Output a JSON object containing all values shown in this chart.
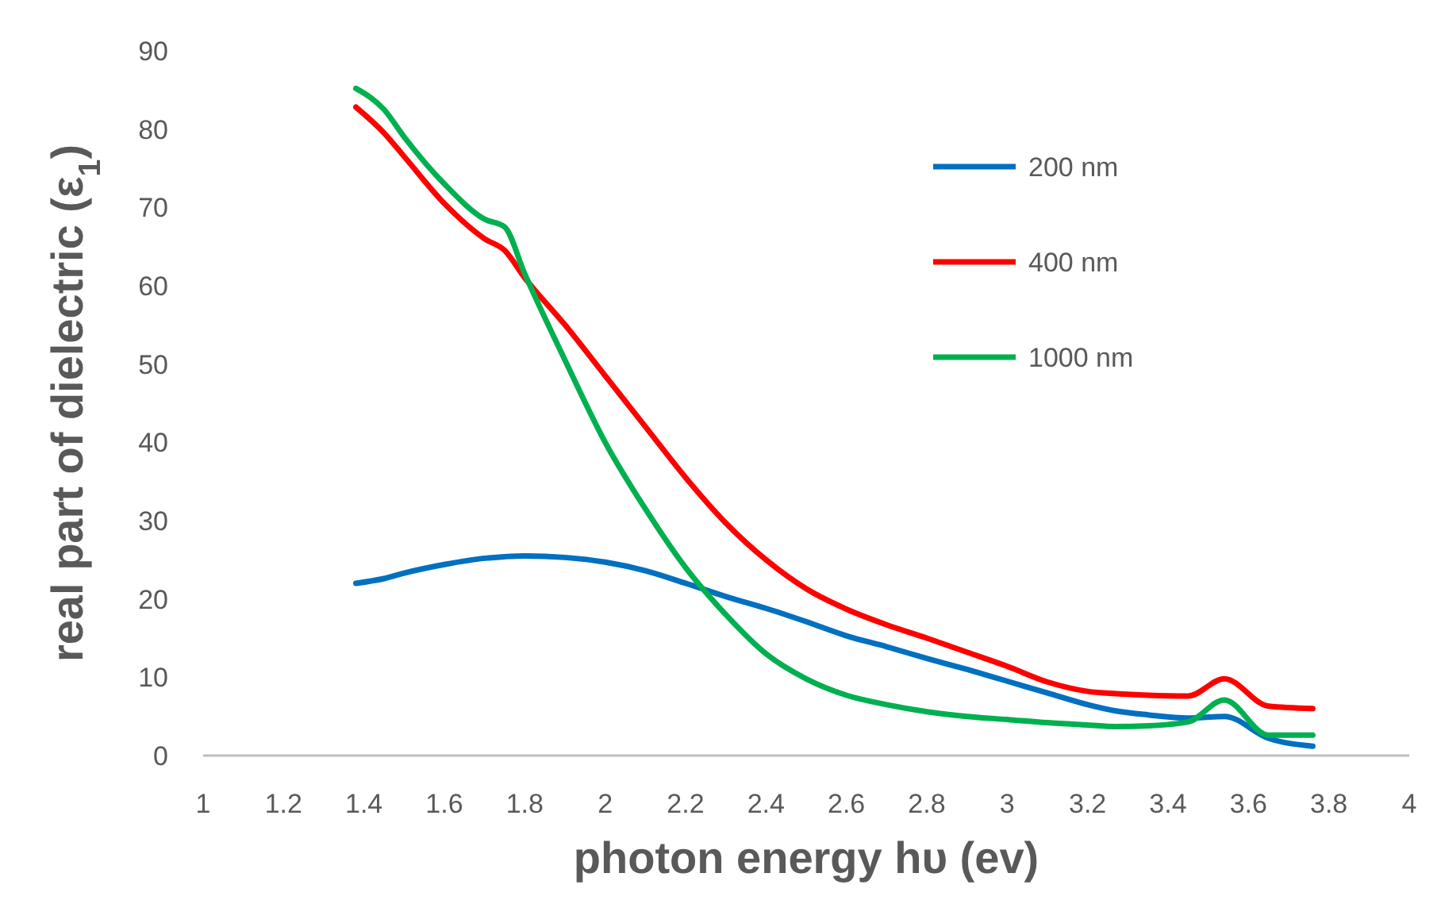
{
  "chart_data": {
    "type": "line",
    "xlabel": "photon energy hυ (ev)",
    "ylabel": "real part of dielectric (ε$_{1}$)",
    "x": [
      1.38,
      1.45,
      1.5,
      1.6,
      1.7,
      1.75,
      1.8,
      1.9,
      2.0,
      2.1,
      2.2,
      2.3,
      2.4,
      2.5,
      2.6,
      2.7,
      2.8,
      2.9,
      3.0,
      3.1,
      3.2,
      3.27,
      3.35,
      3.45,
      3.54,
      3.65,
      3.76
    ],
    "xlim": [
      1,
      4
    ],
    "xticks": [
      1,
      1.2,
      1.4,
      1.6,
      1.8,
      2,
      2.2,
      2.4,
      2.6,
      2.8,
      3,
      3.2,
      3.4,
      3.6,
      3.8,
      4
    ],
    "ylim": [
      0,
      90
    ],
    "yticks": [
      0,
      10,
      20,
      30,
      40,
      50,
      60,
      70,
      80,
      90
    ],
    "grid": false,
    "legend": "top right",
    "marker": "none",
    "line_style": "solid",
    "series": [
      {
        "name": "200 nm",
        "color": "#0070c0",
        "values": [
          22,
          22.6,
          23.3,
          24.4,
          25.2,
          25.4,
          25.5,
          25.3,
          24.7,
          23.6,
          22,
          20.3,
          18.8,
          17.1,
          15.3,
          13.9,
          12.4,
          11.0,
          9.5,
          8.0,
          6.5,
          5.7,
          5.2,
          4.8,
          5.0,
          2.2,
          1.2
        ]
      },
      {
        "name": "400 nm",
        "color": "#ff0000",
        "values": [
          82.8,
          79.5,
          76.5,
          70.5,
          66,
          64.5,
          61,
          55,
          48.5,
          42,
          35.5,
          29.7,
          25,
          21.3,
          18.7,
          16.7,
          15,
          13.2,
          11.4,
          9.4,
          8.2,
          7.9,
          7.7,
          7.6,
          9.8,
          6.3,
          6.0
        ]
      },
      {
        "name": "1000 nm",
        "color": "#00b050",
        "values": [
          85.2,
          82.5,
          79,
          73,
          68.5,
          67.5,
          61.5,
          50.5,
          40,
          31.5,
          24,
          18,
          13,
          9.8,
          7.7,
          6.5,
          5.6,
          5.0,
          4.6,
          4.2,
          3.9,
          3.7,
          3.8,
          4.3,
          7.1,
          2.6,
          2.6
        ]
      }
    ]
  }
}
